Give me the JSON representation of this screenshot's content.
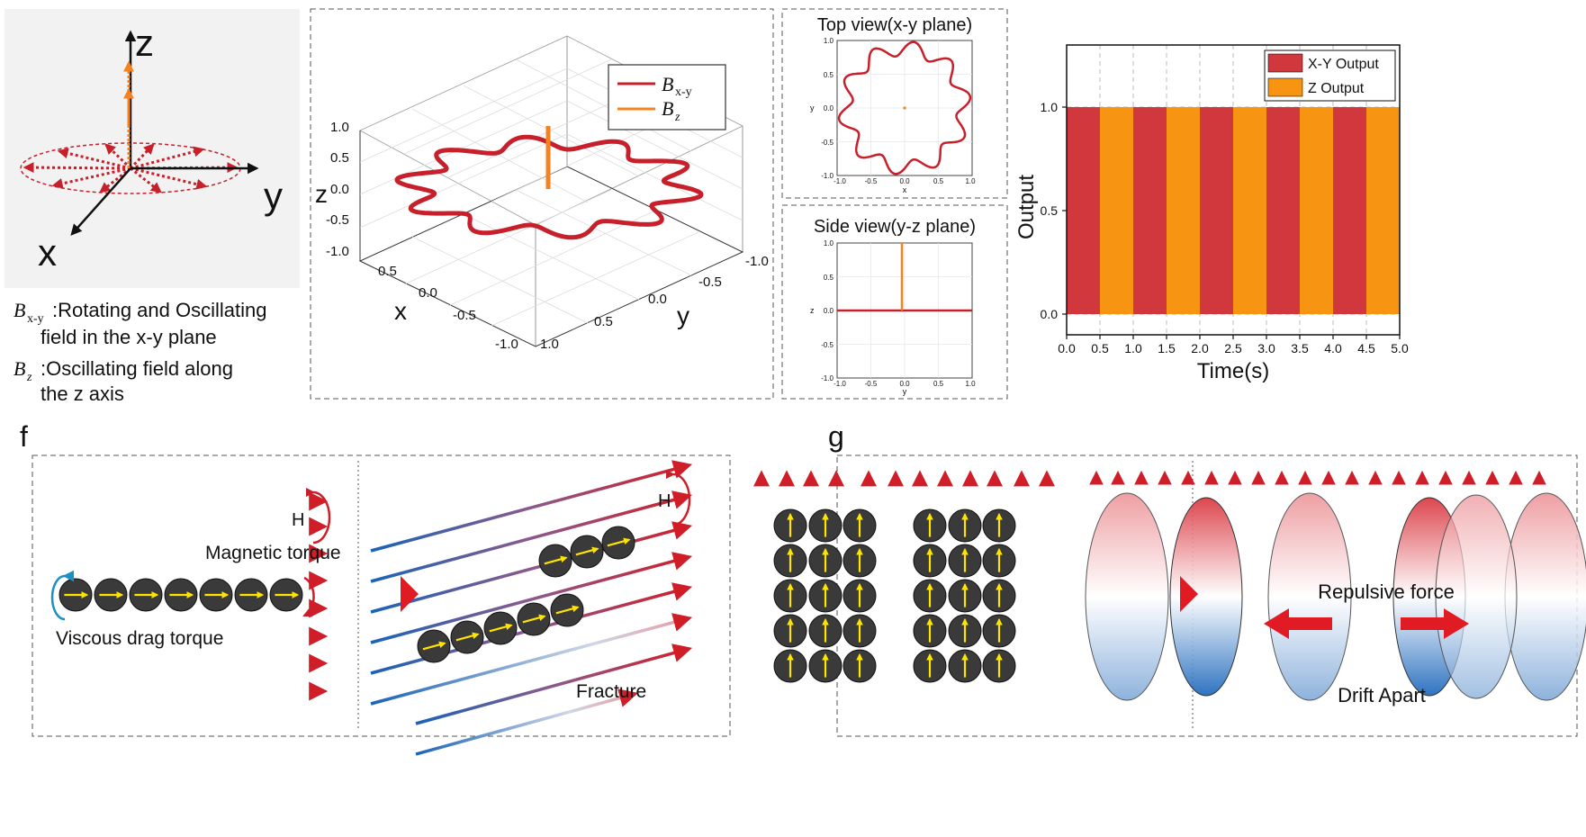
{
  "panel_a": {
    "axis_z": "z",
    "axis_y": "y",
    "axis_x": "x",
    "legend_bxy_sym": "B",
    "legend_bxy_sub": "x-y",
    "legend_bxy_text1": ":Rotating and Oscillating",
    "legend_bxy_text2": "field in the x-y plane",
    "legend_bz_sym": "B",
    "legend_bz_sub": "z",
    "legend_bz_text1": ":Oscillating field along",
    "legend_bz_text2": "the z axis",
    "colors": {
      "xy": "#c8202a",
      "z": "#f5821f"
    }
  },
  "panel_3d": {
    "legend": [
      {
        "sym": "B",
        "sub": "x-y",
        "color": "#c8202a"
      },
      {
        "sym": "B",
        "sub": "z",
        "color": "#f5821f"
      }
    ],
    "z_label": "z",
    "x_label": "x",
    "y_label": "y",
    "z_ticks": [
      "1.0",
      "0.5",
      "0.0",
      "-0.5",
      "-1.0"
    ],
    "x_ticks": [
      "0.5",
      "0.0",
      "-0.5",
      "-1.0"
    ],
    "y_ticks": [
      "-1.0",
      "-0.5",
      "0.0",
      "0.5",
      "1.0"
    ]
  },
  "top_view": {
    "title": "Top view(x-y plane)",
    "xlabel": "x",
    "ylabel": "y",
    "ticks": [
      "-1.0",
      "-0.5",
      "0.0",
      "0.5",
      "1.0"
    ]
  },
  "side_view": {
    "title": "Side view(y-z plane)",
    "xlabel": "y",
    "ylabel": "z",
    "ticks": [
      "-1.0",
      "-0.5",
      "0.0",
      "0.5",
      "1.0"
    ]
  },
  "chart_data": {
    "type": "bar",
    "xlabel": "Time(s)",
    "ylabel": "Output",
    "xlim": [
      0,
      5
    ],
    "ylim": [
      -0.1,
      1.3
    ],
    "x_ticks": [
      "0.0",
      "0.5",
      "1.0",
      "1.5",
      "2.0",
      "2.5",
      "3.0",
      "3.5",
      "4.0",
      "4.5",
      "5.0"
    ],
    "y_ticks": [
      "0.0",
      "0.5",
      "1.0"
    ],
    "legend_position": "top-right",
    "series": [
      {
        "name": "X-Y Output",
        "color": "#d0383d",
        "intervals": [
          [
            0,
            0.5
          ],
          [
            1.0,
            1.5
          ],
          [
            2.0,
            2.5
          ],
          [
            3.0,
            3.5
          ],
          [
            4.0,
            4.5
          ]
        ],
        "value": 1.0
      },
      {
        "name": "Z Output",
        "color": "#f79412",
        "intervals": [
          [
            0.5,
            1.0
          ],
          [
            1.5,
            2.0
          ],
          [
            2.5,
            3.0
          ],
          [
            3.5,
            4.0
          ],
          [
            4.5,
            5.0
          ]
        ],
        "value": 1.0
      }
    ]
  },
  "panel_f": {
    "label": "f",
    "h_left": "H",
    "h_right": "H",
    "magnetic_torque": "Magnetic torque",
    "viscous_drag": "Viscous drag torque",
    "fracture": "Fracture"
  },
  "panel_g": {
    "label": "g",
    "repulsive": "Repulsive force",
    "drift": "Drift Apart"
  }
}
